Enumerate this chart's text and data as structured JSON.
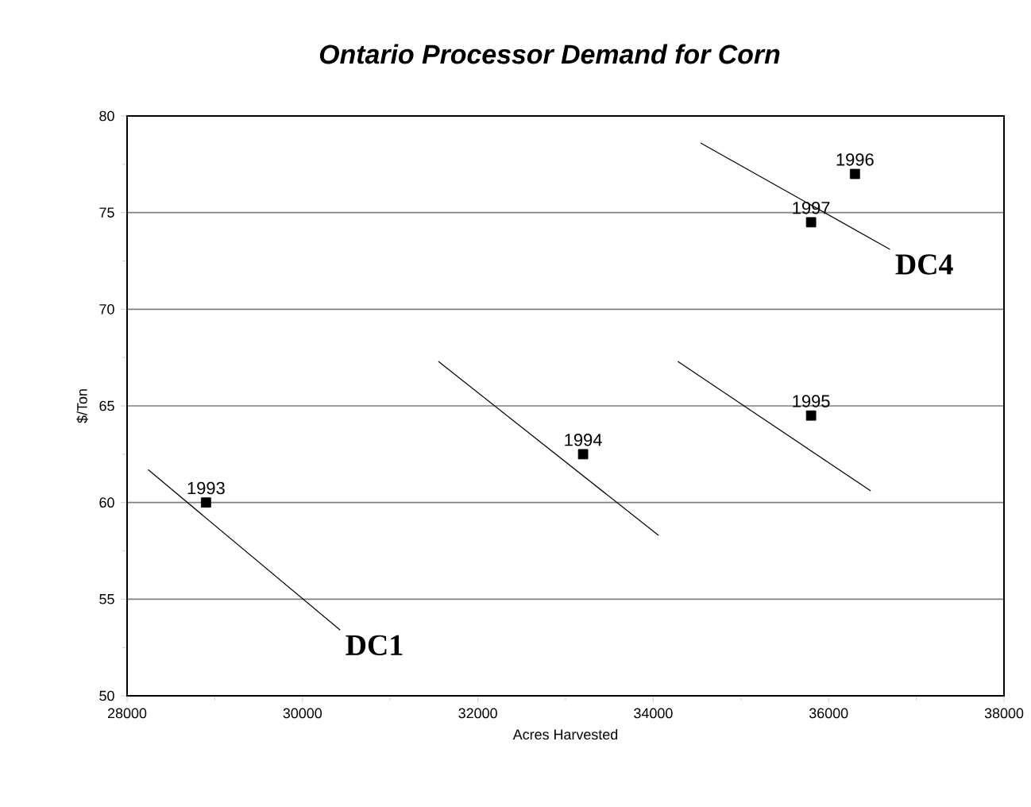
{
  "chart_data": {
    "type": "scatter",
    "title": "Ontario Processor Demand for Corn",
    "xlabel": "Acres Harvested",
    "ylabel": "$/Ton",
    "xlim": [
      28000,
      38000
    ],
    "xticks": [
      28000,
      30000,
      32000,
      34000,
      36000,
      38000
    ],
    "ylim": [
      50,
      80
    ],
    "yticks": [
      50,
      55,
      60,
      65,
      70,
      75,
      80
    ],
    "grid": "y",
    "series": [
      {
        "color": "#000000",
        "marker": "square",
        "x": [
          28900,
          33200,
          35800,
          36300,
          35800
        ],
        "values": [
          60,
          62.5,
          64.5,
          77,
          74.5
        ]
      },
      {
        "type": "line",
        "color": "#000000",
        "marker": "none",
        "x": [
          28240,
          30430
        ],
        "values": [
          61.7,
          53.4
        ]
      },
      {
        "type": "line",
        "color": "#000000",
        "marker": "none",
        "x": [
          31550,
          34060
        ],
        "values": [
          67.3,
          58.3
        ]
      },
      {
        "type": "line",
        "color": "#000000",
        "marker": "none",
        "x": [
          34280,
          36480
        ],
        "values": [
          67.3,
          60.6
        ]
      },
      {
        "type": "line",
        "color": "#000000",
        "marker": "none",
        "x": [
          34540,
          36700
        ],
        "values": [
          78.6,
          73.1
        ]
      }
    ],
    "annotations": [
      {
        "text": "1993",
        "x": 28900,
        "y": 60
      },
      {
        "text": "1994",
        "x": 33200,
        "y": 62.5
      },
      {
        "text": "1995",
        "x": 35800,
        "y": 64.5
      },
      {
        "text": "1996",
        "x": 36300,
        "y": 77
      },
      {
        "text": "1997",
        "x": 35800,
        "y": 74.5
      },
      {
        "text": "DC1",
        "x": 30430,
        "y": 53.4
      },
      {
        "text": "DC4",
        "x": 36700,
        "y": 73.1
      }
    ]
  }
}
